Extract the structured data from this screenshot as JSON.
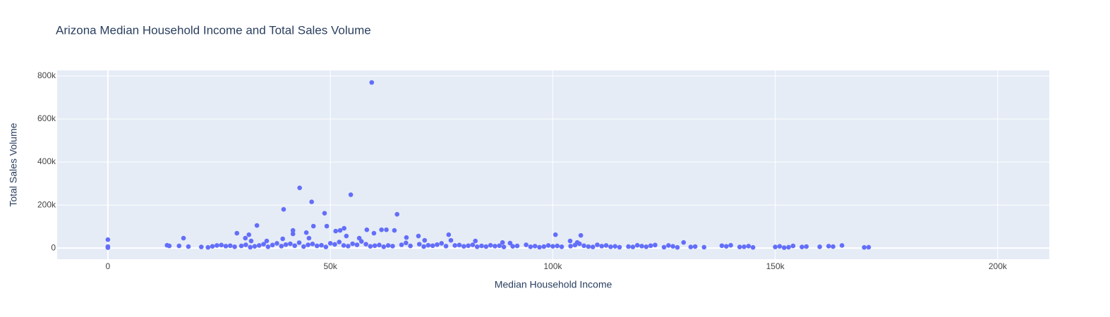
{
  "chart_data": {
    "type": "scatter",
    "title": "Arizona Median Household Income and Total Sales Volume",
    "x_label": "Median Household Income",
    "y_label": "Total Sales Volume",
    "color": "#636efa",
    "grid": true,
    "xlim": [
      -11400,
      211600
    ],
    "ylim": [
      -52000,
      826000
    ],
    "xticks": [
      0,
      {
        "value": 50000,
        "label": "50k"
      },
      {
        "value": 100000,
        "label": "100k"
      },
      {
        "value": 150000,
        "label": "150k"
      },
      {
        "value": 200000,
        "label": "200k"
      }
    ],
    "yticks": [
      0,
      {
        "value": 200000,
        "label": "200k"
      },
      {
        "value": 400000,
        "label": "400k"
      },
      {
        "value": 600000,
        "label": "600k"
      },
      {
        "value": 800000,
        "label": "800k"
      }
    ],
    "x": [
      59300,
      43100,
      45800,
      54600,
      39500,
      48700,
      65000,
      33500,
      46200,
      49200,
      61500,
      62600,
      58200,
      53100,
      51200,
      52200,
      41600,
      41600,
      29000,
      31700,
      44600,
      64400,
      59800,
      69800,
      76600,
      100600,
      106300,
      53600,
      56500,
      67100,
      45200,
      17000,
      0,
      0,
      0,
      13300,
      13800,
      16000,
      18100,
      32200,
      30900,
      35700,
      39300,
      77100,
      82600,
      71200,
      88700,
      90400,
      103900,
      105500,
      129400,
      21000,
      22500,
      23500,
      24500,
      25500,
      26500,
      27500,
      28500,
      30000,
      31000,
      32000,
      33000,
      34000,
      35000,
      36000,
      37000,
      38000,
      39000,
      40000,
      41000,
      42000,
      43000,
      44000,
      45000,
      46000,
      47000,
      48000,
      49000,
      50000,
      51000,
      52000,
      53000,
      54000,
      55000,
      56000,
      57000,
      58000,
      59000,
      60000,
      61000,
      62000,
      63000,
      64000,
      66000,
      67000,
      68000,
      70000,
      71000,
      72000,
      73000,
      74000,
      75000,
      76000,
      78000,
      79000,
      80000,
      81000,
      82000,
      83000,
      84000,
      85000,
      86000,
      87000,
      88000,
      89000,
      91000,
      92000,
      94000,
      95000,
      96000,
      97000,
      98000,
      99000,
      100000,
      101000,
      102000,
      104000,
      105000,
      106000,
      107000,
      108000,
      109000,
      110000,
      111000,
      112000,
      113000,
      114000,
      115000,
      117000,
      118000,
      119000,
      120000,
      121000,
      122000,
      123000,
      125000,
      126000,
      127000,
      128000,
      131000,
      132000,
      134000,
      138000,
      139000,
      140000,
      142000,
      143000,
      144000,
      145000,
      150000,
      151000,
      152000,
      153000,
      154000,
      156000,
      157000,
      160000,
      162000,
      163000,
      165000,
      170000,
      171000
    ],
    "values": [
      770000,
      280000,
      215000,
      248000,
      180000,
      162000,
      157000,
      105000,
      102000,
      102000,
      85000,
      85000,
      85000,
      92000,
      79000,
      82000,
      82000,
      66000,
      69000,
      62000,
      72000,
      82000,
      69000,
      56000,
      62000,
      62000,
      59000,
      56000,
      46000,
      49000,
      46000,
      46000,
      39000,
      7000,
      2000,
      13000,
      10000,
      10000,
      7000,
      33000,
      46000,
      33000,
      43000,
      36000,
      33000,
      36000,
      26000,
      23000,
      33000,
      26000,
      26000,
      5000,
      3000,
      8000,
      12000,
      14000,
      9000,
      11000,
      6000,
      10000,
      15000,
      4000,
      8000,
      12000,
      18000,
      6000,
      14000,
      22000,
      9000,
      16000,
      20000,
      11000,
      25000,
      7000,
      15000,
      19000,
      10000,
      13000,
      5000,
      22000,
      17000,
      28000,
      12000,
      9000,
      20000,
      15000,
      31000,
      18000,
      8000,
      11000,
      14000,
      6000,
      12000,
      9000,
      15000,
      24000,
      10000,
      18000,
      7000,
      13000,
      11000,
      16000,
      22000,
      9000,
      12000,
      14000,
      8000,
      11000,
      15000,
      6000,
      10000,
      7000,
      13000,
      9000,
      11000,
      5000,
      8000,
      10000,
      15000,
      6000,
      9000,
      4000,
      7000,
      12000,
      8000,
      10000,
      6000,
      9000,
      14000,
      20000,
      11000,
      7000,
      5000,
      15000,
      9000,
      12000,
      6000,
      8000,
      4000,
      7000,
      5000,
      13000,
      9000,
      6000,
      11000,
      14000,
      4000,
      12000,
      8000,
      3000,
      5000,
      7000,
      4000,
      11000,
      8000,
      13000,
      5000,
      6000,
      9000,
      3000,
      5000,
      8000,
      2000,
      4000,
      10000,
      5000,
      7000,
      6000,
      9000,
      7000,
      12000,
      3000,
      4000
    ]
  }
}
